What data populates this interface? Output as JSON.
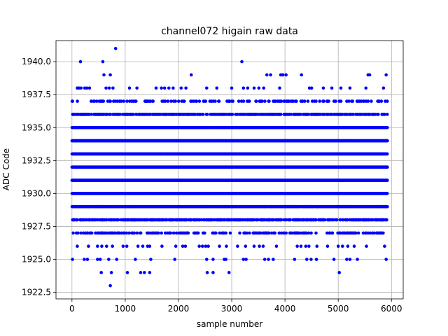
{
  "chart_data": {
    "type": "scatter",
    "title": "channel072 higain raw data",
    "xlabel": "sample number",
    "ylabel": "ADC Code",
    "xlim": [
      -300,
      6220
    ],
    "ylim": [
      1922.0,
      1941.6
    ],
    "xticks": [
      0,
      1000,
      2000,
      3000,
      4000,
      5000,
      6000
    ],
    "xtick_labels": [
      "0",
      "1000",
      "2000",
      "3000",
      "4000",
      "5000",
      "6000"
    ],
    "yticks": [
      1922.5,
      1925.0,
      1927.5,
      1930.0,
      1932.5,
      1935.0,
      1937.5,
      1940.0
    ],
    "ytick_labels": [
      "1922.5",
      "1925.0",
      "1927.5",
      "1930.0",
      "1932.5",
      "1935.0",
      "1937.5",
      "1940.0"
    ],
    "grid": true,
    "marker_color": "#0000ff",
    "x_range": [
      0,
      5920
    ],
    "levels": [
      {
        "y": 1936,
        "density": 0.55
      },
      {
        "y": 1935,
        "density": 0.9
      },
      {
        "y": 1934,
        "density": 1.0
      },
      {
        "y": 1933,
        "density": 1.0
      },
      {
        "y": 1932,
        "density": 1.0
      },
      {
        "y": 1931,
        "density": 1.0
      },
      {
        "y": 1930,
        "density": 1.0
      },
      {
        "y": 1929,
        "density": 0.9
      },
      {
        "y": 1928,
        "density": 0.6
      },
      {
        "y": 1937,
        "density": 0.22
      },
      {
        "y": 1927,
        "density": 0.3
      }
    ],
    "outliers": [
      {
        "x": 160,
        "y": 1940
      },
      {
        "x": 580,
        "y": 1940
      },
      {
        "x": 820,
        "y": 1941
      },
      {
        "x": 3190,
        "y": 1940
      },
      {
        "x": 600,
        "y": 1939
      },
      {
        "x": 720,
        "y": 1939
      },
      {
        "x": 2240,
        "y": 1939
      },
      {
        "x": 3660,
        "y": 1939
      },
      {
        "x": 3730,
        "y": 1939
      },
      {
        "x": 3920,
        "y": 1939
      },
      {
        "x": 3960,
        "y": 1939
      },
      {
        "x": 4020,
        "y": 1939
      },
      {
        "x": 4310,
        "y": 1939
      },
      {
        "x": 5560,
        "y": 1939
      },
      {
        "x": 5590,
        "y": 1939
      },
      {
        "x": 5900,
        "y": 1939
      },
      {
        "x": 100,
        "y": 1938
      },
      {
        "x": 130,
        "y": 1938
      },
      {
        "x": 170,
        "y": 1938
      },
      {
        "x": 240,
        "y": 1938
      },
      {
        "x": 280,
        "y": 1938
      },
      {
        "x": 330,
        "y": 1938
      },
      {
        "x": 640,
        "y": 1938
      },
      {
        "x": 700,
        "y": 1938
      },
      {
        "x": 770,
        "y": 1938
      },
      {
        "x": 1080,
        "y": 1938
      },
      {
        "x": 1220,
        "y": 1938
      },
      {
        "x": 1580,
        "y": 1938
      },
      {
        "x": 1680,
        "y": 1938
      },
      {
        "x": 1740,
        "y": 1938
      },
      {
        "x": 1820,
        "y": 1938
      },
      {
        "x": 1900,
        "y": 1938
      },
      {
        "x": 2050,
        "y": 1938
      },
      {
        "x": 2140,
        "y": 1938
      },
      {
        "x": 2530,
        "y": 1938
      },
      {
        "x": 2720,
        "y": 1938
      },
      {
        "x": 3000,
        "y": 1938
      },
      {
        "x": 3220,
        "y": 1938
      },
      {
        "x": 3300,
        "y": 1938
      },
      {
        "x": 3420,
        "y": 1938
      },
      {
        "x": 3510,
        "y": 1938
      },
      {
        "x": 3600,
        "y": 1938
      },
      {
        "x": 3900,
        "y": 1938
      },
      {
        "x": 4460,
        "y": 1938
      },
      {
        "x": 4500,
        "y": 1938
      },
      {
        "x": 4720,
        "y": 1938
      },
      {
        "x": 4880,
        "y": 1938
      },
      {
        "x": 5050,
        "y": 1938
      },
      {
        "x": 5220,
        "y": 1938
      },
      {
        "x": 5520,
        "y": 1938
      },
      {
        "x": 5850,
        "y": 1938
      },
      {
        "x": 100,
        "y": 1926
      },
      {
        "x": 310,
        "y": 1926
      },
      {
        "x": 480,
        "y": 1926
      },
      {
        "x": 560,
        "y": 1926
      },
      {
        "x": 650,
        "y": 1926
      },
      {
        "x": 760,
        "y": 1926
      },
      {
        "x": 960,
        "y": 1926
      },
      {
        "x": 1030,
        "y": 1926
      },
      {
        "x": 1240,
        "y": 1926
      },
      {
        "x": 1330,
        "y": 1926
      },
      {
        "x": 1420,
        "y": 1926
      },
      {
        "x": 1460,
        "y": 1926
      },
      {
        "x": 1690,
        "y": 1926
      },
      {
        "x": 1950,
        "y": 1926
      },
      {
        "x": 2080,
        "y": 1926
      },
      {
        "x": 2130,
        "y": 1926
      },
      {
        "x": 2390,
        "y": 1926
      },
      {
        "x": 2450,
        "y": 1926
      },
      {
        "x": 2510,
        "y": 1926
      },
      {
        "x": 2560,
        "y": 1926
      },
      {
        "x": 2770,
        "y": 1926
      },
      {
        "x": 2900,
        "y": 1926
      },
      {
        "x": 3110,
        "y": 1926
      },
      {
        "x": 3260,
        "y": 1926
      },
      {
        "x": 3420,
        "y": 1926
      },
      {
        "x": 3520,
        "y": 1926
      },
      {
        "x": 3590,
        "y": 1926
      },
      {
        "x": 3840,
        "y": 1926
      },
      {
        "x": 4230,
        "y": 1926
      },
      {
        "x": 4300,
        "y": 1926
      },
      {
        "x": 4390,
        "y": 1926
      },
      {
        "x": 4450,
        "y": 1926
      },
      {
        "x": 4600,
        "y": 1926
      },
      {
        "x": 4800,
        "y": 1926
      },
      {
        "x": 5000,
        "y": 1926
      },
      {
        "x": 5080,
        "y": 1926
      },
      {
        "x": 5180,
        "y": 1926
      },
      {
        "x": 5300,
        "y": 1926
      },
      {
        "x": 5530,
        "y": 1926
      },
      {
        "x": 5870,
        "y": 1926
      },
      {
        "x": 10,
        "y": 1925
      },
      {
        "x": 230,
        "y": 1925
      },
      {
        "x": 290,
        "y": 1925
      },
      {
        "x": 480,
        "y": 1925
      },
      {
        "x": 530,
        "y": 1925
      },
      {
        "x": 690,
        "y": 1925
      },
      {
        "x": 840,
        "y": 1925
      },
      {
        "x": 1190,
        "y": 1925
      },
      {
        "x": 1480,
        "y": 1925
      },
      {
        "x": 1930,
        "y": 1925
      },
      {
        "x": 2530,
        "y": 1925
      },
      {
        "x": 2650,
        "y": 1925
      },
      {
        "x": 2860,
        "y": 1925
      },
      {
        "x": 2890,
        "y": 1925
      },
      {
        "x": 3220,
        "y": 1925
      },
      {
        "x": 3270,
        "y": 1925
      },
      {
        "x": 3620,
        "y": 1925
      },
      {
        "x": 3690,
        "y": 1925
      },
      {
        "x": 3780,
        "y": 1925
      },
      {
        "x": 4180,
        "y": 1925
      },
      {
        "x": 4410,
        "y": 1925
      },
      {
        "x": 4490,
        "y": 1925
      },
      {
        "x": 4590,
        "y": 1925
      },
      {
        "x": 4920,
        "y": 1925
      },
      {
        "x": 5160,
        "y": 1925
      },
      {
        "x": 5220,
        "y": 1925
      },
      {
        "x": 5360,
        "y": 1925
      },
      {
        "x": 5900,
        "y": 1925
      },
      {
        "x": 550,
        "y": 1924
      },
      {
        "x": 740,
        "y": 1924
      },
      {
        "x": 1040,
        "y": 1924
      },
      {
        "x": 1290,
        "y": 1924
      },
      {
        "x": 1360,
        "y": 1924
      },
      {
        "x": 1460,
        "y": 1924
      },
      {
        "x": 2540,
        "y": 1924
      },
      {
        "x": 2650,
        "y": 1924
      },
      {
        "x": 2950,
        "y": 1924
      },
      {
        "x": 5020,
        "y": 1924
      },
      {
        "x": 720,
        "y": 1923
      }
    ]
  }
}
